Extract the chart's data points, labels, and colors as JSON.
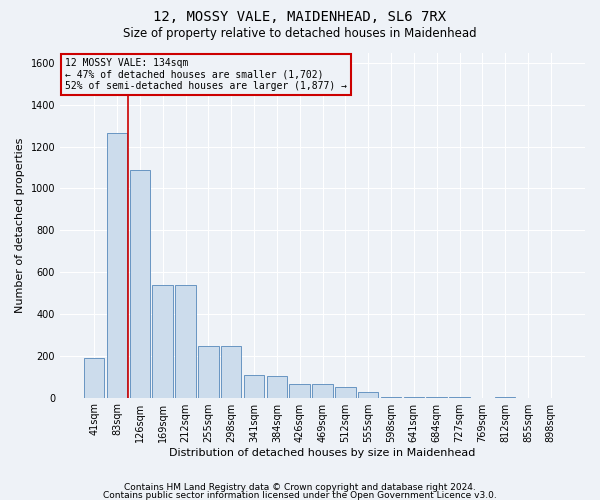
{
  "title1": "12, MOSSY VALE, MAIDENHEAD, SL6 7RX",
  "title2": "Size of property relative to detached houses in Maidenhead",
  "xlabel": "Distribution of detached houses by size in Maidenhead",
  "ylabel": "Number of detached properties",
  "categories": [
    "41sqm",
    "83sqm",
    "126sqm",
    "169sqm",
    "212sqm",
    "255sqm",
    "298sqm",
    "341sqm",
    "384sqm",
    "426sqm",
    "469sqm",
    "512sqm",
    "555sqm",
    "598sqm",
    "641sqm",
    "684sqm",
    "727sqm",
    "769sqm",
    "812sqm",
    "855sqm",
    "898sqm"
  ],
  "values": [
    190,
    1265,
    1090,
    540,
    540,
    245,
    245,
    110,
    105,
    65,
    65,
    50,
    25,
    5,
    5,
    5,
    5,
    0,
    5,
    0,
    0
  ],
  "bar_color": "#ccdcec",
  "bar_edge_color": "#5588bb",
  "vline_x": 1.5,
  "vline_color": "#cc0000",
  "box_edge_color": "#cc0000",
  "property_label": "12 MOSSY VALE: 134sqm",
  "annotation_line1": "← 47% of detached houses are smaller (1,702)",
  "annotation_line2": "52% of semi-detached houses are larger (1,877) →",
  "footer1": "Contains HM Land Registry data © Crown copyright and database right 2024.",
  "footer2": "Contains public sector information licensed under the Open Government Licence v3.0.",
  "ylim": [
    0,
    1650
  ],
  "bg_color": "#eef2f7",
  "grid_color": "#ffffff",
  "title1_fontsize": 10,
  "title2_fontsize": 8.5,
  "ylabel_fontsize": 8,
  "xlabel_fontsize": 8,
  "tick_fontsize": 7,
  "annot_fontsize": 7,
  "footer_fontsize": 6.5
}
